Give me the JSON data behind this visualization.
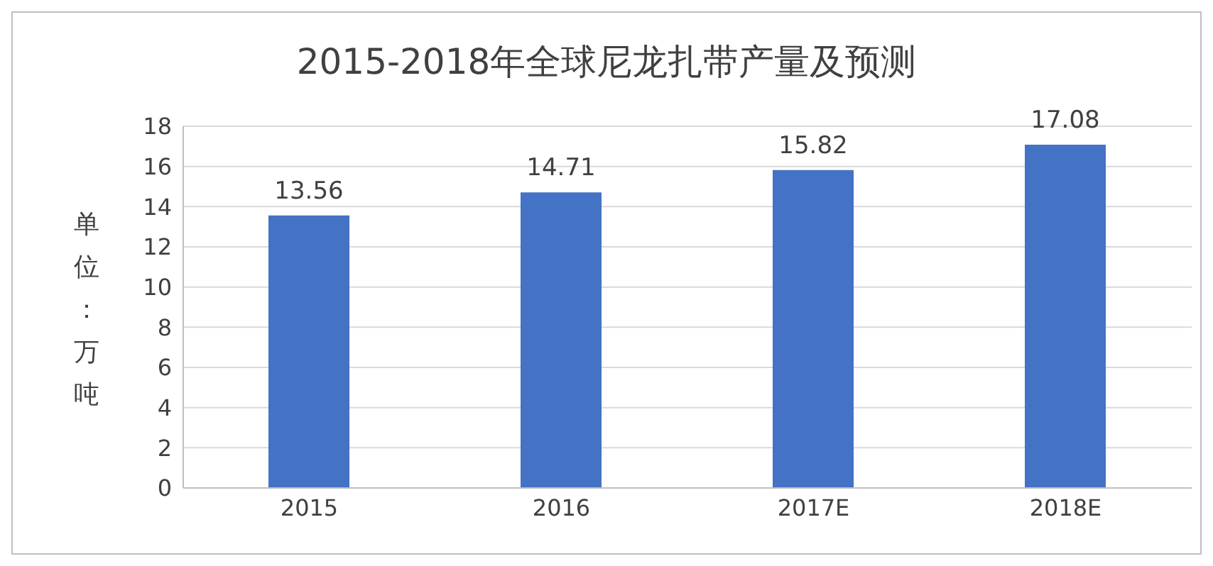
{
  "chart_data": {
    "type": "bar",
    "title": "2015-2018年全球尼龙扎带产量及预测",
    "ylabel": "单位：万吨",
    "categories": [
      "2015",
      "2016",
      "2017E",
      "2018E"
    ],
    "values": [
      13.56,
      14.71,
      15.82,
      17.08
    ],
    "color": "#4472c4",
    "ylim": [
      0,
      18
    ],
    "yticks": [
      0,
      2,
      4,
      6,
      8,
      10,
      12,
      14,
      16,
      18
    ],
    "grid": "y",
    "data_labels": true
  }
}
